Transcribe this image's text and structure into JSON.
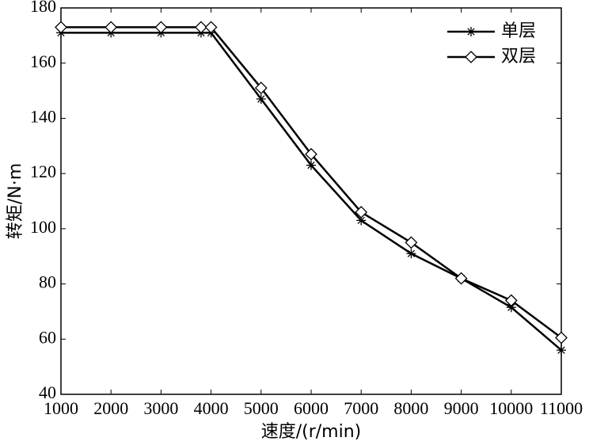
{
  "chart_data": {
    "type": "line",
    "x_label": "速度/(r/min)",
    "y_label": "转矩/N·m",
    "xlim": [
      1000,
      11000
    ],
    "xticks": [
      1000,
      2000,
      3000,
      4000,
      5000,
      6000,
      7000,
      8000,
      9000,
      10000,
      11000
    ],
    "ylim": [
      40,
      180
    ],
    "yticks": [
      40,
      60,
      80,
      100,
      120,
      140,
      160,
      180
    ],
    "legend": "upper right",
    "series": [
      {
        "name": "单层",
        "color": "#000000",
        "marker": "asterisk",
        "x": [
          1000,
          2000,
          3000,
          3800,
          4000,
          5000,
          6000,
          7000,
          8000,
          9000,
          10000,
          11000
        ],
        "values": [
          171,
          171,
          171,
          171,
          171,
          147,
          123,
          103,
          91,
          82,
          71.5,
          56
        ]
      },
      {
        "name": "双层",
        "color": "#000000",
        "marker": "diamond",
        "x": [
          1000,
          2000,
          3000,
          3800,
          4000,
          5000,
          6000,
          7000,
          8000,
          9000,
          10000,
          11000
        ],
        "values": [
          173,
          173,
          173,
          173,
          173,
          151,
          127,
          106,
          95,
          82,
          74,
          60.5
        ]
      }
    ]
  }
}
